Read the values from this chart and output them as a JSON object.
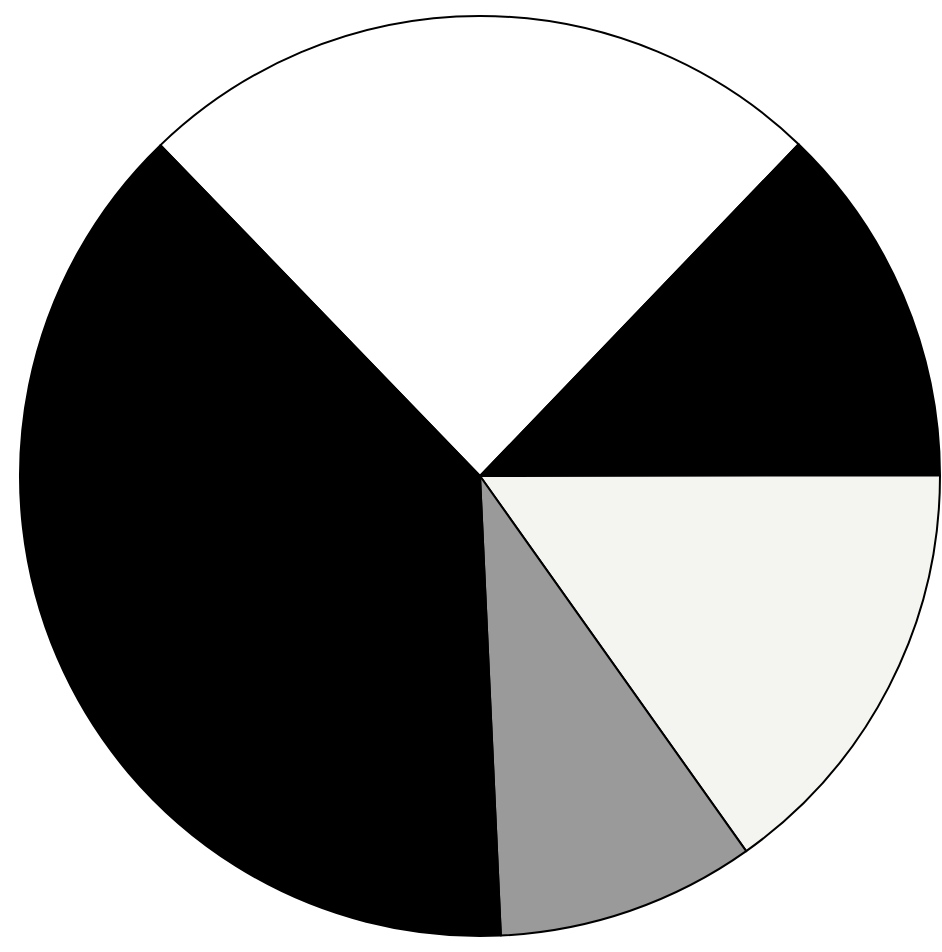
{
  "chart_data": {
    "type": "pie",
    "categories": [
      null,
      null,
      null,
      null,
      null
    ],
    "values": [
      24.4,
      12.8,
      15.2,
      9.1,
      38.5
    ],
    "colors": [
      "#ffffff",
      "#000000",
      "#f4f4f0",
      "#9a9a9a",
      "#000000"
    ]
  }
}
